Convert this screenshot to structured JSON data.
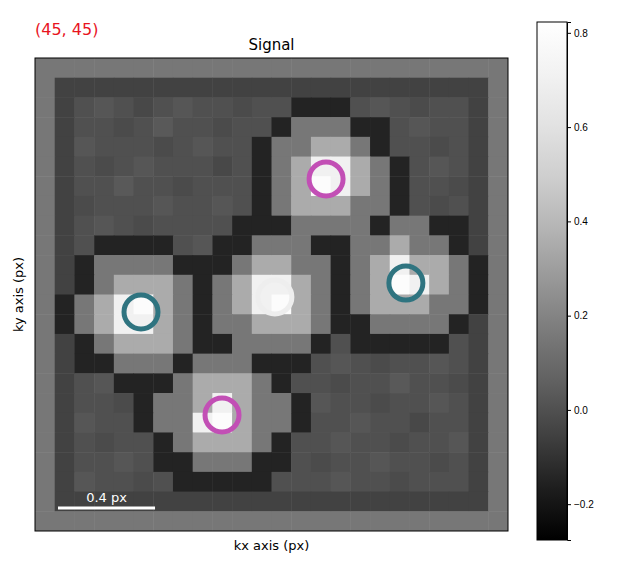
{
  "chart_data": {
    "type": "heatmap",
    "title": "Signal",
    "annotation": "(45, 45)",
    "x_label": "kx axis (px)",
    "y_label": "ky axis (px)",
    "xlim": [
      0,
      1.95
    ],
    "ylim": [
      0,
      1.95
    ],
    "tick_labels": false,
    "color": "gray",
    "color_range": [
      -0.276,
      0.823
    ],
    "colorbar_ticks": [
      {
        "value": -0.2,
        "label": "−0.2"
      },
      {
        "value": 0,
        "label": "0.0"
      },
      0.2,
      0.4,
      0.6,
      0.8
    ],
    "scale_bar": {
      "value": 0.4,
      "label": "0.4 px"
    },
    "markers": {
      "x": [
        0.989,
        1.2,
        0.771,
        0.437,
        1.529
      ],
      "y": [
        0.985,
        0.499,
        1.472,
        1.047,
        0.928
      ],
      "colors": [
        "#eeeeee",
        "#c24fb5",
        "#c24fb5",
        "#2f7480",
        "#2f7480"
      ]
    },
    "cells": [
      [
        0.15,
        0.15,
        0.15,
        0.15,
        0.15,
        0.15,
        0.15,
        0.15,
        0.15,
        0.15,
        0.15,
        0.15,
        0.15,
        0.15,
        0.15,
        0.15,
        0.15,
        0.15,
        0.15,
        0.15,
        0.15,
        0.15,
        0.15,
        0.15
      ],
      [
        0.15,
        -0.05,
        -0.05,
        -0.05,
        -0.05,
        -0.05,
        -0.05,
        -0.05,
        -0.05,
        -0.05,
        -0.05,
        -0.05,
        -0.05,
        -0.05,
        -0.05,
        -0.05,
        -0.05,
        -0.05,
        -0.05,
        -0.05,
        -0.05,
        -0.05,
        -0.05,
        0.15
      ],
      [
        0.15,
        -0.05,
        0,
        0.02,
        0,
        -0.03,
        0,
        0.02,
        0,
        0,
        -0.02,
        0,
        0,
        -0.15,
        -0.15,
        -0.15,
        0,
        0.02,
        0,
        -0.02,
        0,
        0,
        -0.05,
        0.15
      ],
      [
        0.15,
        -0.05,
        0,
        0,
        -0.02,
        0,
        0.03,
        0,
        0,
        -0.02,
        0,
        0,
        -0.15,
        0.15,
        0.15,
        0.15,
        -0.15,
        -0.15,
        0,
        0.02,
        0,
        0,
        -0.05,
        0.15
      ],
      [
        0.15,
        -0.05,
        0.02,
        0,
        0,
        0,
        -0.02,
        0,
        0.02,
        0,
        0,
        -0.15,
        0.15,
        0.15,
        0.35,
        0.35,
        0.15,
        -0.15,
        0,
        0,
        -0.02,
        0,
        -0.05,
        0.15
      ],
      [
        0.15,
        -0.05,
        0,
        -0.02,
        0,
        0.02,
        0,
        0,
        0,
        -0.03,
        0,
        -0.15,
        0.15,
        0.35,
        0.7,
        0.7,
        0.35,
        0.15,
        -0.15,
        0,
        0.02,
        0,
        -0.05,
        0.15
      ],
      [
        0.15,
        -0.05,
        0,
        0,
        0.03,
        0,
        0,
        -0.02,
        0,
        0,
        0,
        -0.15,
        0.15,
        0.35,
        0.8,
        0.7,
        0.35,
        0.15,
        -0.15,
        0,
        0,
        -0.02,
        -0.05,
        0.15
      ],
      [
        0.15,
        -0.05,
        -0.02,
        0,
        0,
        0,
        0.02,
        0,
        0,
        0.02,
        0,
        -0.15,
        0.15,
        0.35,
        0.35,
        0.35,
        0.15,
        0.15,
        -0.15,
        0,
        -0.02,
        0,
        -0.05,
        0.15
      ],
      [
        0.15,
        -0.05,
        0,
        0.02,
        0,
        -0.02,
        0,
        0,
        0,
        0,
        -0.15,
        -0.15,
        -0.15,
        0.15,
        0.15,
        0.15,
        0.15,
        -0.15,
        0.15,
        0.15,
        -0.15,
        -0.15,
        -0.05,
        0.15
      ],
      [
        0.15,
        -0.05,
        0,
        -0.15,
        -0.15,
        -0.15,
        -0.15,
        0,
        0.02,
        -0.15,
        -0.15,
        0.15,
        0.15,
        0.15,
        -0.15,
        -0.15,
        0.15,
        0.15,
        0.35,
        0.15,
        0.15,
        -0.15,
        -0.05,
        0.15
      ],
      [
        0.15,
        -0.05,
        -0.15,
        0.15,
        0.15,
        0.15,
        0.15,
        -0.15,
        -0.15,
        -0.15,
        0.15,
        0.35,
        0.35,
        0.15,
        0.15,
        -0.15,
        0.15,
        0.35,
        0.7,
        0.35,
        0.35,
        0.15,
        -0.15,
        0.15
      ],
      [
        0.15,
        -0.05,
        -0.15,
        0.15,
        0.35,
        0.35,
        0.35,
        0.15,
        -0.15,
        0.15,
        0.35,
        0.7,
        0.7,
        0.35,
        0.15,
        -0.15,
        0.15,
        0.35,
        0.8,
        0.7,
        0.35,
        0.15,
        -0.15,
        0.15
      ],
      [
        0.15,
        -0.15,
        0.15,
        0.35,
        0.7,
        0.8,
        0.35,
        0.15,
        -0.15,
        0.15,
        0.35,
        0.7,
        0.8,
        0.35,
        0.15,
        -0.15,
        0.15,
        0.35,
        0.35,
        0.35,
        0.15,
        0.15,
        -0.15,
        0.15
      ],
      [
        0.15,
        -0.15,
        0.15,
        0.35,
        0.7,
        0.7,
        0.35,
        0.15,
        -0.15,
        0.15,
        0.15,
        0.35,
        0.35,
        0.35,
        0.15,
        -0.15,
        -0.15,
        0.15,
        0.15,
        0.15,
        0.15,
        -0.15,
        -0.05,
        0.15
      ],
      [
        0.15,
        -0.05,
        -0.15,
        0.15,
        0.35,
        0.35,
        0.35,
        0.15,
        -0.15,
        -0.15,
        0.15,
        0.15,
        0.15,
        0.15,
        -0.15,
        0,
        -0.15,
        -0.15,
        -0.15,
        -0.15,
        -0.15,
        0,
        -0.05,
        0.15
      ],
      [
        0.15,
        -0.05,
        -0.15,
        -0.15,
        0.15,
        0.15,
        0.15,
        -0.15,
        0.15,
        0.15,
        0.15,
        -0.15,
        -0.15,
        -0.15,
        0,
        0.02,
        0,
        -0.02,
        0,
        0,
        0.02,
        0,
        -0.05,
        0.15
      ],
      [
        0.15,
        -0.05,
        0,
        0.02,
        -0.15,
        -0.15,
        -0.15,
        0.15,
        0.35,
        0.35,
        0.35,
        0.15,
        -0.15,
        0,
        0,
        -0.02,
        0,
        0,
        0.03,
        0,
        0,
        -0.02,
        -0.05,
        0.15
      ],
      [
        0.15,
        -0.05,
        0,
        0,
        -0.02,
        -0.15,
        0.15,
        0.15,
        0.35,
        0.7,
        0.35,
        0.15,
        0.15,
        -0.15,
        0.02,
        0,
        0,
        -0.02,
        0,
        0,
        0.02,
        0,
        -0.05,
        0.15
      ],
      [
        0.15,
        -0.05,
        0.02,
        0,
        0,
        -0.15,
        0.15,
        0.15,
        0.7,
        0.8,
        0.35,
        0.15,
        0.15,
        -0.15,
        0,
        0,
        0.02,
        0,
        0,
        -0.03,
        0,
        0,
        -0.05,
        0.15
      ],
      [
        0.15,
        -0.05,
        0,
        -0.02,
        0,
        0,
        -0.15,
        0.15,
        0.35,
        0.35,
        0.35,
        0.15,
        -0.15,
        0,
        0,
        0.02,
        0,
        0,
        -0.02,
        0,
        0,
        0.02,
        -0.05,
        0.15
      ],
      [
        0.15,
        -0.05,
        0,
        0,
        0.02,
        0,
        -0.15,
        -0.15,
        0.15,
        0.15,
        0.15,
        -0.15,
        -0.15,
        0,
        -0.02,
        0,
        0,
        0.02,
        0,
        0,
        -0.02,
        0,
        -0.05,
        0.15
      ],
      [
        0.15,
        -0.05,
        0.02,
        0,
        0,
        -0.02,
        0,
        -0.15,
        -0.15,
        -0.15,
        -0.15,
        -0.15,
        0,
        0,
        0,
        0.02,
        0,
        0,
        -0.02,
        0,
        0,
        0,
        -0.05,
        0.15
      ],
      [
        0.15,
        -0.05,
        -0.05,
        -0.05,
        -0.05,
        -0.05,
        -0.05,
        -0.05,
        -0.05,
        -0.05,
        -0.05,
        -0.05,
        -0.05,
        -0.05,
        -0.05,
        -0.05,
        -0.05,
        -0.05,
        -0.05,
        -0.05,
        -0.05,
        -0.05,
        -0.05,
        0.15
      ],
      [
        0.15,
        0.15,
        0.15,
        0.15,
        0.15,
        0.15,
        0.15,
        0.15,
        0.15,
        0.15,
        0.15,
        0.15,
        0.15,
        0.15,
        0.15,
        0.15,
        0.15,
        0.15,
        0.15,
        0.15,
        0.15,
        0.15,
        0.15,
        0.15
      ]
    ]
  }
}
